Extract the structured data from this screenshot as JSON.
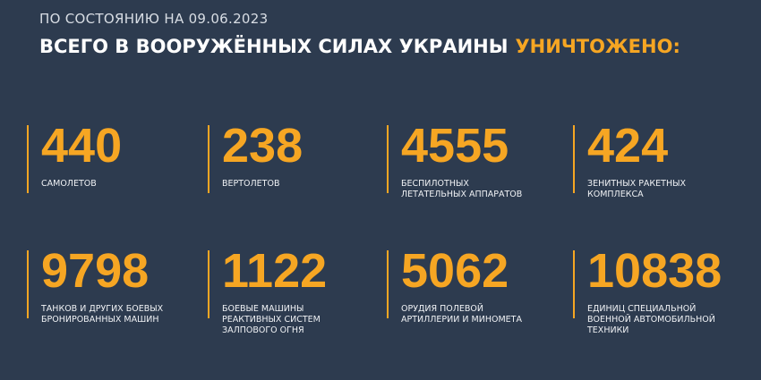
{
  "header": {
    "date_line": "ПО СОСТОЯНИЮ НА 09.06.2023",
    "title": "ВСЕГО В ВООРУЖЁННЫХ СИЛАХ УКРАИНЫ",
    "title_highlight": "УНИЧТОЖЕНО:"
  },
  "items": [
    {
      "value": 440,
      "label": [
        "САМОЛЕТОВ"
      ]
    },
    {
      "value": 238,
      "label": [
        "ВЕРТОЛЕТОВ"
      ]
    },
    {
      "value": 4555,
      "label": [
        "БЕСПИЛОТНЫХ",
        "ЛЕТАТЕЛЬНЫХ АППАРАТОВ"
      ]
    },
    {
      "value": 424,
      "label": [
        "ЗЕНИТНЫХ РАКЕТНЫХ",
        "КОМПЛЕКСА"
      ]
    },
    {
      "value": 9798,
      "label": [
        "ТАНКОВ И ДРУГИХ БОЕВЫХ",
        "БРОНИРОВАННЫХ МАШИН"
      ]
    },
    {
      "value": 1122,
      "label": [
        "БОЕВЫЕ МАШИНЫ",
        "РЕАКТИВНЫХ СИСТЕМ",
        "ЗАЛПОВОГО ОГНЯ"
      ]
    },
    {
      "value": 5062,
      "label": [
        "ОРУДИЯ ПОЛЕВОЙ",
        "АРТИЛЛЕРИИ И МИНОМЕТА"
      ]
    },
    {
      "value": 10838,
      "label": [
        "ЕДИНИЦ СПЕЦИАЛЬНОЙ",
        "ВОЕННОЙ АВТОМОБИЛЬНОЙ",
        "ТЕХНИКИ"
      ]
    }
  ]
}
